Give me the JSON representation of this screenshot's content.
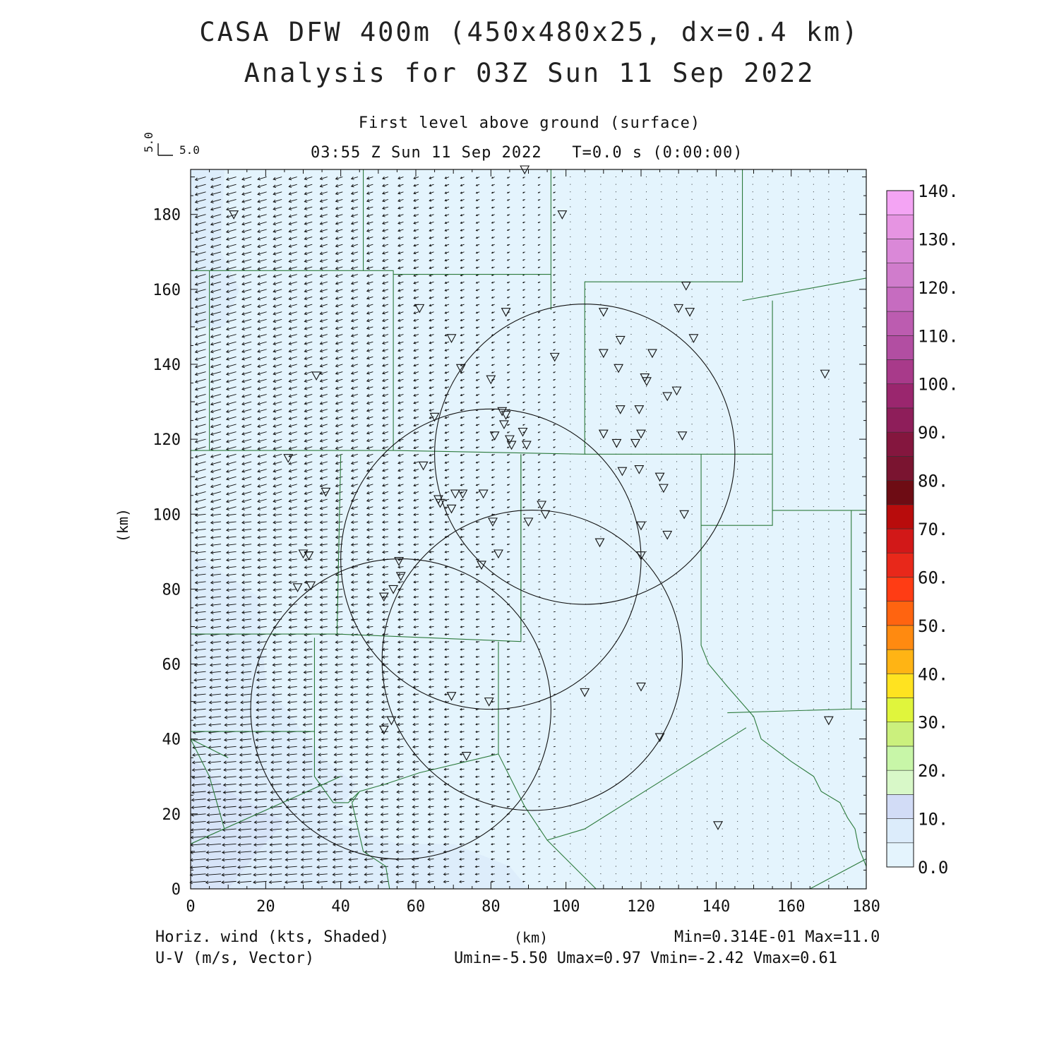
{
  "title": {
    "line1": "CASA DFW 400m (450x480x25, dx=0.4 km)",
    "line2": "Analysis for 03Z Sun 11 Sep 2022"
  },
  "subtitle": {
    "level": "First level above ground (surface)",
    "time": "03:55 Z Sun 11 Sep 2022   T=0.0 s (0:00:00)"
  },
  "reference_vector": {
    "u_label": "5.0",
    "v_label": "5.0"
  },
  "footer": {
    "left1": "Horiz. wind (kts, Shaded)",
    "left2": "U-V (m/s, Vector)",
    "stats1": "Min=0.314E-01 Max=11.0",
    "stats2": "Umin=-5.50 Umax=0.97 Vmin=-2.42 Vmax=0.61"
  },
  "chart_data": {
    "type": "heatmap",
    "description_fields": [
      "wind_speed_shaded",
      "wind_vectors",
      "county_lines",
      "radar_range_rings",
      "station_markers"
    ],
    "xlabel": "(km)",
    "ylabel": "(km)",
    "xlim": [
      0,
      180
    ],
    "ylim": [
      0,
      192
    ],
    "x_ticks": [
      0,
      20,
      40,
      60,
      80,
      100,
      120,
      140,
      160,
      180
    ],
    "y_ticks": [
      0,
      20,
      40,
      60,
      80,
      100,
      120,
      140,
      160,
      180
    ],
    "colorbar": {
      "levels": [
        "0.0",
        "10.",
        "20.",
        "30.",
        "40.",
        "50.",
        "60.",
        "70.",
        "80.",
        "90.",
        "100.",
        "110.",
        "120.",
        "130.",
        "140."
      ],
      "colors": [
        "#e4f4fd",
        "#dcecfb",
        "#d2dcf6",
        "#d8f8c8",
        "#c8f6a8",
        "#cbf07d",
        "#e0f53c",
        "#ffe320",
        "#ffb414",
        "#ff8a10",
        "#ff6410",
        "#ff3c14",
        "#e8281a",
        "#d21818",
        "#b80c0c",
        "#6e0c14",
        "#7a1430",
        "#84163e",
        "#8e1e5a",
        "#9a266e",
        "#a83a8a",
        "#b24ea2",
        "#bc5cb0",
        "#c66cc0",
        "#d07ccc",
        "#da88d8",
        "#e694e2",
        "#f4a4f4"
      ]
    },
    "wind_speed_region_max_kts": 11.0,
    "vector_field": {
      "u_range": [
        -5.5,
        0.97
      ],
      "v_range": [
        -2.42,
        0.61
      ]
    },
    "range_rings": [
      {
        "center": [
          105,
          116
        ],
        "radius_km": 40
      },
      {
        "center": [
          80,
          88
        ],
        "radius_km": 40
      },
      {
        "center": [
          91,
          61
        ],
        "radius_km": 40
      },
      {
        "center": [
          56,
          48
        ],
        "radius_km": 40
      }
    ],
    "stations": [
      [
        89,
        192
      ],
      [
        11.5,
        180
      ],
      [
        99,
        180
      ],
      [
        132,
        161
      ],
      [
        61,
        155
      ],
      [
        84,
        154
      ],
      [
        110,
        154
      ],
      [
        130,
        155
      ],
      [
        133,
        154
      ],
      [
        69.5,
        147
      ],
      [
        114.5,
        146.5
      ],
      [
        134,
        147
      ],
      [
        97,
        142
      ],
      [
        110,
        143
      ],
      [
        123,
        143
      ],
      [
        72,
        139
      ],
      [
        114,
        139
      ],
      [
        33.5,
        137
      ],
      [
        80,
        136
      ],
      [
        121,
        136.5
      ],
      [
        121.5,
        135.5
      ],
      [
        129.5,
        133
      ],
      [
        127,
        131.5
      ],
      [
        169,
        137.5
      ],
      [
        114.5,
        128
      ],
      [
        119.5,
        128
      ],
      [
        65,
        126
      ],
      [
        83,
        127.5
      ],
      [
        84,
        126.5
      ],
      [
        83.5,
        124
      ],
      [
        88.5,
        122
      ],
      [
        81,
        121
      ],
      [
        110,
        121.5
      ],
      [
        120,
        121.5
      ],
      [
        131,
        121
      ],
      [
        85,
        120
      ],
      [
        85.5,
        118.5
      ],
      [
        89.5,
        118.5
      ],
      [
        113.5,
        119
      ],
      [
        118.5,
        119
      ],
      [
        26,
        115
      ],
      [
        62,
        113
      ],
      [
        115,
        111.5
      ],
      [
        119.5,
        112
      ],
      [
        125,
        110
      ],
      [
        126,
        107
      ],
      [
        36,
        106
      ],
      [
        66,
        104
      ],
      [
        66.5,
        103
      ],
      [
        70.5,
        105.5
      ],
      [
        72.5,
        105.5
      ],
      [
        78,
        105.5
      ],
      [
        69.5,
        101.5
      ],
      [
        93.5,
        102.5
      ],
      [
        131.5,
        100
      ],
      [
        94.5,
        100
      ],
      [
        90,
        98
      ],
      [
        80.5,
        98
      ],
      [
        120,
        97
      ],
      [
        127,
        94.5
      ],
      [
        109,
        92.5
      ],
      [
        30,
        89.5
      ],
      [
        31.5,
        89
      ],
      [
        82,
        89.5
      ],
      [
        120,
        89
      ],
      [
        77.5,
        86.5
      ],
      [
        55.5,
        87.5
      ],
      [
        56,
        83.5
      ],
      [
        28.5,
        80.5
      ],
      [
        32,
        81
      ],
      [
        54,
        80
      ],
      [
        51.5,
        78
      ],
      [
        69.5,
        51.5
      ],
      [
        79.5,
        50
      ],
      [
        105,
        52.5
      ],
      [
        120,
        54
      ],
      [
        53.5,
        45
      ],
      [
        51.5,
        42.5
      ],
      [
        125,
        40.5
      ],
      [
        170,
        45
      ],
      [
        73.5,
        35.5
      ],
      [
        140.5,
        17
      ]
    ]
  }
}
